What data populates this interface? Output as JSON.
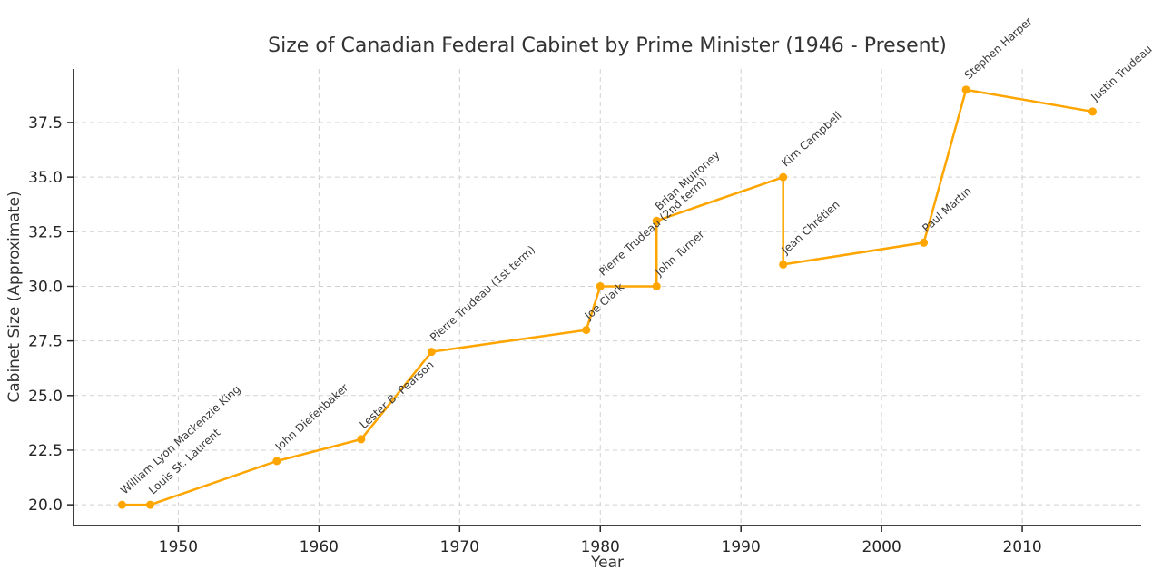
{
  "figure": {
    "background_color": "#ffffff"
  },
  "chart_data": {
    "type": "line",
    "title": "Size of Canadian Federal Cabinet by Prime Minister (1946 - Present)",
    "xlabel": "Year",
    "ylabel": "Cabinet Size (Approximate)",
    "xlim": [
      1942.55,
      2018.45
    ],
    "ylim": [
      19.05,
      39.95
    ],
    "x_ticks": [
      1950,
      1960,
      1970,
      1980,
      1990,
      2000,
      2010
    ],
    "y_ticks": [
      20.0,
      22.5,
      25.0,
      27.5,
      30.0,
      32.5,
      35.0,
      37.5
    ],
    "grid": true,
    "grid_style": "dashed",
    "grid_color": "#d0d0d0",
    "legend_position": "none",
    "line_color": "#FFA500",
    "marker_color": "#FFA500",
    "marker_shape": "circle",
    "annotation_rotation_deg": -42,
    "axis_color": "#262626",
    "points": [
      {
        "label": "William Lyon Mackenzie King",
        "year": 1946,
        "size": 20
      },
      {
        "label": "Louis St. Laurent",
        "year": 1948,
        "size": 20
      },
      {
        "label": "John Diefenbaker",
        "year": 1957,
        "size": 22
      },
      {
        "label": "Lester B. Pearson",
        "year": 1963,
        "size": 23
      },
      {
        "label": "Pierre Trudeau (1st term)",
        "year": 1968,
        "size": 27
      },
      {
        "label": "Joe Clark",
        "year": 1979,
        "size": 28
      },
      {
        "label": "Pierre Trudeau (2nd term)",
        "year": 1980,
        "size": 30
      },
      {
        "label": "John Turner",
        "year": 1984,
        "size": 30
      },
      {
        "label": "Brian Mulroney",
        "year": 1984,
        "size": 33
      },
      {
        "label": "Kim Campbell",
        "year": 1993,
        "size": 35
      },
      {
        "label": "Jean Chrétien",
        "year": 1993,
        "size": 31
      },
      {
        "label": "Paul Martin",
        "year": 2003,
        "size": 32
      },
      {
        "label": "Stephen Harper",
        "year": 2006,
        "size": 39
      },
      {
        "label": "Justin Trudeau",
        "year": 2015,
        "size": 38
      }
    ]
  }
}
